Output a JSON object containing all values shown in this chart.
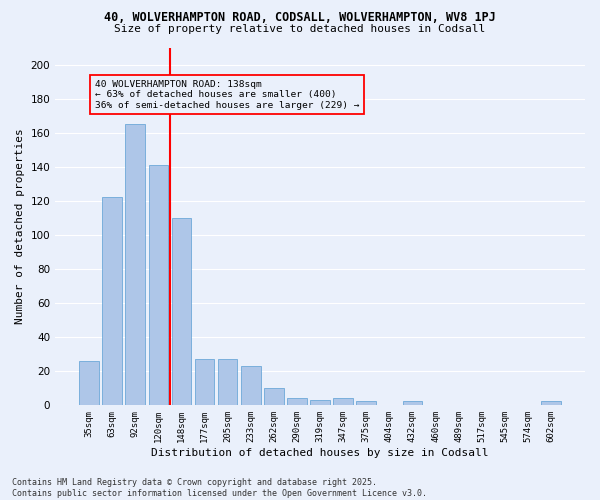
{
  "title1": "40, WOLVERHAMPTON ROAD, CODSALL, WOLVERHAMPTON, WV8 1PJ",
  "title2": "Size of property relative to detached houses in Codsall",
  "xlabel": "Distribution of detached houses by size in Codsall",
  "ylabel": "Number of detached properties",
  "footer1": "Contains HM Land Registry data © Crown copyright and database right 2025.",
  "footer2": "Contains public sector information licensed under the Open Government Licence v3.0.",
  "categories": [
    "35sqm",
    "63sqm",
    "92sqm",
    "120sqm",
    "148sqm",
    "177sqm",
    "205sqm",
    "233sqm",
    "262sqm",
    "290sqm",
    "319sqm",
    "347sqm",
    "375sqm",
    "404sqm",
    "432sqm",
    "460sqm",
    "489sqm",
    "517sqm",
    "545sqm",
    "574sqm",
    "602sqm"
  ],
  "values": [
    26,
    122,
    165,
    141,
    110,
    27,
    27,
    23,
    10,
    4,
    3,
    4,
    2,
    0,
    2,
    0,
    0,
    0,
    0,
    0,
    2
  ],
  "bar_color": "#aec6e8",
  "bar_edge_color": "#5a9fd4",
  "background_color": "#eaf0fb",
  "grid_color": "#ffffff",
  "vline_color": "red",
  "vline_x": 3.5,
  "annotation_text": "40 WOLVERHAMPTON ROAD: 138sqm\n← 63% of detached houses are smaller (400)\n36% of semi-detached houses are larger (229) →",
  "annotation_box_color": "red",
  "ylim": [
    0,
    210
  ],
  "yticks": [
    0,
    20,
    40,
    60,
    80,
    100,
    120,
    140,
    160,
    180,
    200
  ]
}
